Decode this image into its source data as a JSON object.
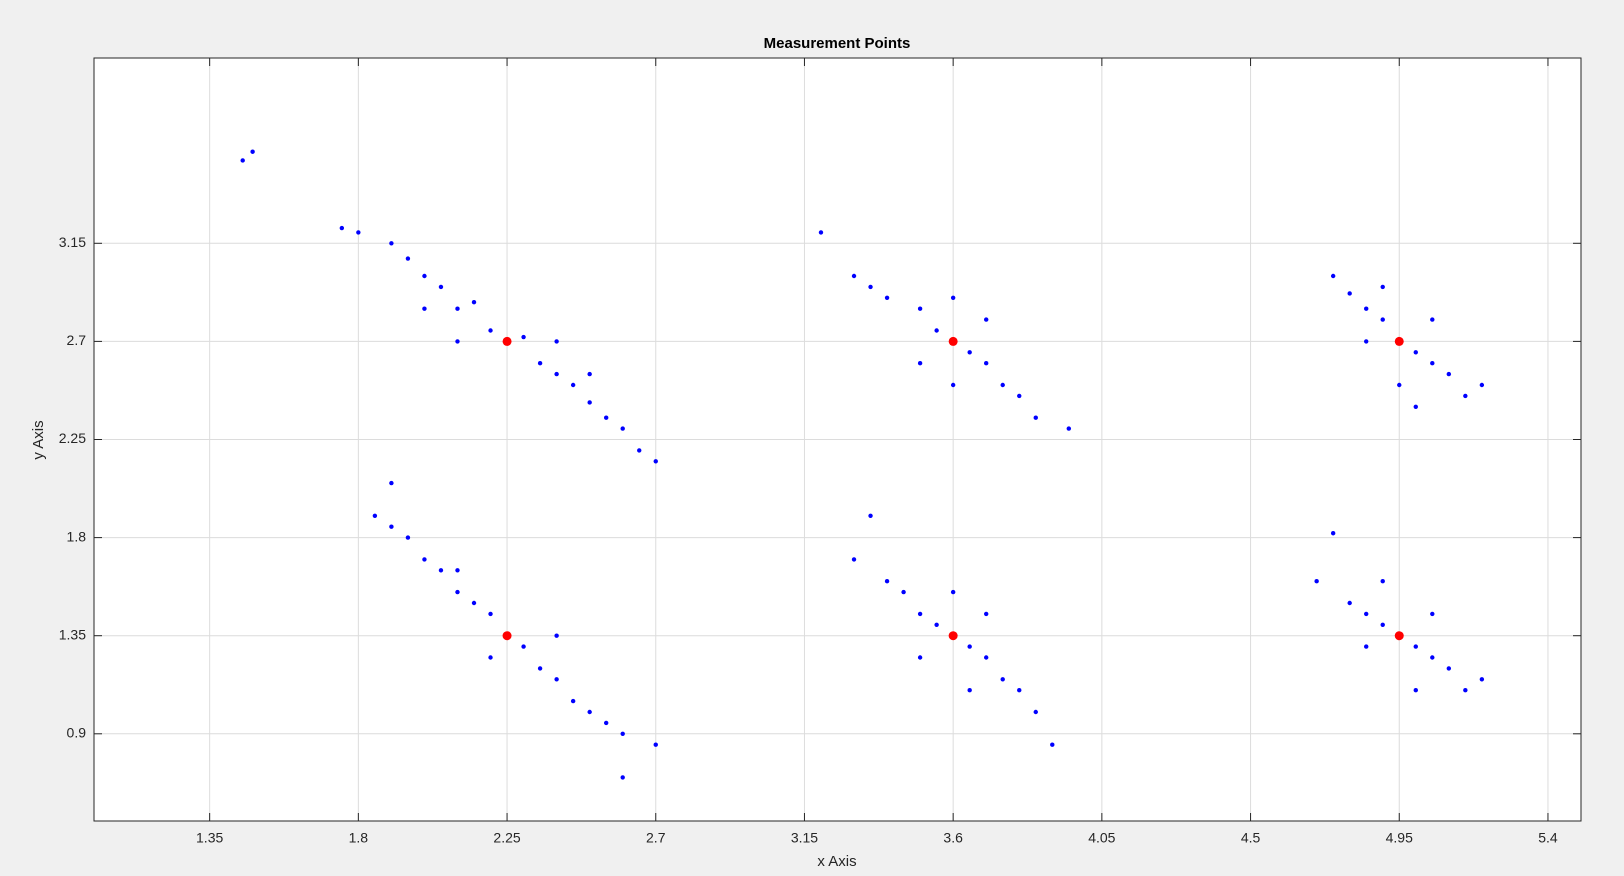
{
  "chart_data": {
    "type": "scatter",
    "title": "Measurement Points",
    "x_label": "x Axis",
    "y_label": "y Axis",
    "xlim": [
      1,
      5.5
    ],
    "ylim": [
      0.5,
      4
    ],
    "xticks": [
      1.35,
      1.8,
      2.25,
      2.7,
      3.15,
      3.6,
      4.05,
      4.5,
      4.95,
      5.4
    ],
    "yticks": [
      0.9,
      1.35,
      1.8,
      2.25,
      2.7,
      3.15
    ],
    "grid": true,
    "series": [
      {
        "color": "#0000ff",
        "size": 2.2,
        "x": [
          1.75,
          1.8,
          1.9,
          1.95,
          2.0,
          2.05,
          2.1,
          2.15,
          2.2,
          2.3,
          2.35,
          2.4,
          2.45,
          2.5,
          2.55,
          2.6,
          2.65,
          2.7,
          2.1,
          2.4,
          2.0,
          2.5,
          3.2,
          3.3,
          3.35,
          3.4,
          3.5,
          3.55,
          3.65,
          3.7,
          3.75,
          3.8,
          3.85,
          3.95,
          3.5,
          3.7,
          3.6,
          3.6,
          4.75,
          4.8,
          4.85,
          4.9,
          5.0,
          5.05,
          5.1,
          5.15,
          5.2,
          4.85,
          5.05,
          4.95,
          4.9,
          5.0,
          1.85,
          1.9,
          1.95,
          2.0,
          2.05,
          2.1,
          2.15,
          2.2,
          2.3,
          2.35,
          2.4,
          2.45,
          2.5,
          2.55,
          2.6,
          2.7,
          2.6,
          2.1,
          2.4,
          2.2,
          1.9,
          3.35,
          3.3,
          3.4,
          3.45,
          3.5,
          3.55,
          3.65,
          3.7,
          3.75,
          3.8,
          3.85,
          3.9,
          3.5,
          3.7,
          3.6,
          3.65,
          4.75,
          4.7,
          4.8,
          4.85,
          4.9,
          5.0,
          5.05,
          5.1,
          5.15,
          5.2,
          4.9,
          5.0,
          4.85,
          5.05,
          1.45,
          1.48
        ],
        "y": [
          3.22,
          3.2,
          3.15,
          3.08,
          3.0,
          2.95,
          2.85,
          2.88,
          2.75,
          2.72,
          2.6,
          2.55,
          2.5,
          2.42,
          2.35,
          2.3,
          2.2,
          2.15,
          2.7,
          2.7,
          2.85,
          2.55,
          3.2,
          3.0,
          2.95,
          2.9,
          2.85,
          2.75,
          2.65,
          2.6,
          2.5,
          2.45,
          2.35,
          2.3,
          2.6,
          2.8,
          2.9,
          2.5,
          3.0,
          2.92,
          2.85,
          2.8,
          2.65,
          2.6,
          2.55,
          2.45,
          2.5,
          2.7,
          2.8,
          2.5,
          2.95,
          2.4,
          1.9,
          1.85,
          1.8,
          1.7,
          1.65,
          1.55,
          1.5,
          1.45,
          1.3,
          1.2,
          1.15,
          1.05,
          1.0,
          0.95,
          0.9,
          0.85,
          0.7,
          1.65,
          1.35,
          1.25,
          2.05,
          1.9,
          1.7,
          1.6,
          1.55,
          1.45,
          1.4,
          1.3,
          1.25,
          1.15,
          1.1,
          1.0,
          0.85,
          1.25,
          1.45,
          1.55,
          1.1,
          1.82,
          1.6,
          1.5,
          1.45,
          1.4,
          1.3,
          1.25,
          1.2,
          1.1,
          1.15,
          1.6,
          1.1,
          1.3,
          1.45,
          3.53,
          3.57
        ]
      },
      {
        "color": "#ff0000",
        "size": 4.5,
        "x": [
          2.25,
          3.6,
          4.95,
          2.25,
          3.6,
          4.95
        ],
        "y": [
          2.7,
          2.7,
          2.7,
          1.35,
          1.35,
          1.35
        ]
      }
    ]
  }
}
